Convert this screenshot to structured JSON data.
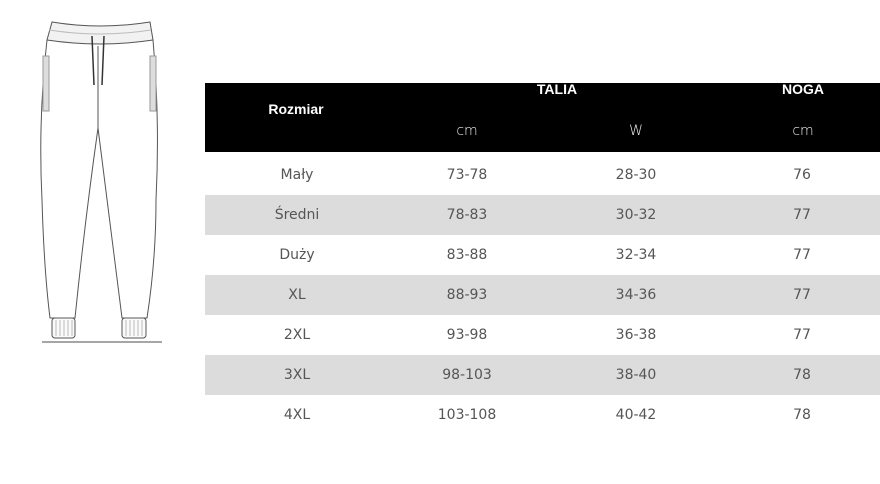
{
  "table": {
    "header": {
      "size_label": "Rozmiar",
      "waist_group": "TALIA",
      "leg_group": "NOGA",
      "units": [
        "cm",
        "W",
        "cm"
      ]
    },
    "rows": [
      [
        "Mały",
        "73-78",
        "28-30",
        "76"
      ],
      [
        "Średni",
        "78-83",
        "30-32",
        "77"
      ],
      [
        "Duży",
        "83-88",
        "32-34",
        "77"
      ],
      [
        "XL",
        "88-93",
        "34-36",
        "77"
      ],
      [
        "2XL",
        "93-98",
        "36-38",
        "77"
      ],
      [
        "3XL",
        "98-103",
        "38-40",
        "78"
      ],
      [
        "4XL",
        "103-108",
        "40-42",
        "78"
      ]
    ],
    "colors": {
      "header_bg": "#000000",
      "alt_row_bg": "#dcdcdc"
    }
  },
  "illustration": {
    "icon": "jogger-pants-drawing"
  }
}
